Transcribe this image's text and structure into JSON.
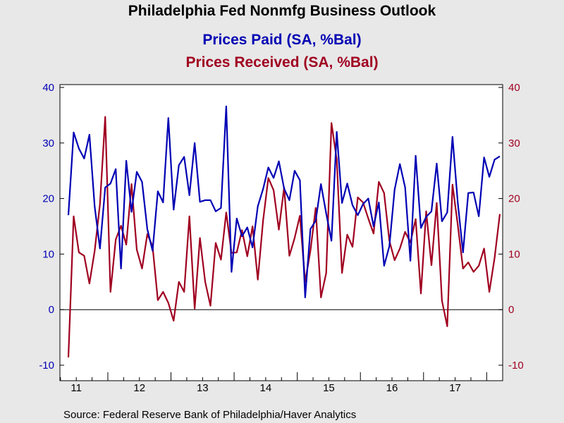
{
  "chart_data": {
    "type": "line",
    "title": "Philadelphia Fed Nonmfg Business Outlook",
    "source": "Source:  Federal Reserve Bank of Philadelphia/Haver Analytics",
    "x_tick_labels": [
      "11",
      "12",
      "13",
      "14",
      "15",
      "16",
      "17"
    ],
    "y_left": {
      "ticks": [
        "40",
        "30",
        "20",
        "10",
        "0",
        "-10"
      ],
      "range": [
        -10,
        40
      ],
      "color": "#0000b4"
    },
    "y_right": {
      "ticks": [
        "40",
        "30",
        "20",
        "10",
        "0",
        "-10"
      ],
      "range": [
        -10,
        40
      ],
      "color": "#a00020"
    },
    "grid": false,
    "zero_line": true,
    "x_start": "2011-05",
    "series": [
      {
        "name": "Prices Paid (SA, %Bal)",
        "color": "#0000b4",
        "values": [
          17.0,
          31.9,
          29.0,
          27.2,
          31.5,
          18.5,
          11.0,
          22.0,
          22.7,
          25.3,
          7.4,
          26.8,
          17.6,
          24.8,
          23.0,
          14.5,
          10.6,
          21.3,
          19.3,
          34.5,
          18.0,
          26.0,
          27.5,
          20.6,
          30.0,
          19.4,
          19.7,
          19.7,
          17.7,
          18.3,
          36.6,
          6.8,
          16.4,
          13.2,
          14.8,
          11.2,
          18.6,
          21.7,
          25.6,
          23.7,
          26.7,
          21.8,
          19.7,
          25.0,
          23.3,
          2.2,
          14.5,
          16.0,
          22.6,
          17.3,
          12.4,
          32.0,
          19.2,
          22.7,
          18.8,
          17.0,
          19.0,
          20.0,
          15.0,
          19.3,
          7.9,
          11.4,
          21.6,
          26.2,
          22.0,
          8.8,
          27.7,
          14.7,
          16.7,
          17.7,
          26.3,
          15.9,
          17.5,
          31.1,
          19.3,
          10.3,
          21.0,
          21.1,
          16.8,
          27.4,
          23.9,
          27.0,
          27.6
        ]
      },
      {
        "name": "Prices Received (SA, %Bal)",
        "color": "#a00020",
        "values": [
          -8.6,
          16.8,
          10.3,
          9.7,
          4.7,
          10.6,
          19.0,
          34.7,
          3.2,
          12.6,
          15.1,
          11.7,
          22.6,
          10.8,
          7.4,
          13.6,
          11.4,
          1.7,
          3.2,
          1.2,
          -2.0,
          5.0,
          3.2,
          16.8,
          0.2,
          12.9,
          5.0,
          0.7,
          12.0,
          9.0,
          17.5,
          10.2,
          10.3,
          14.3,
          9.6,
          15.0,
          5.4,
          16.0,
          23.7,
          21.5,
          14.4,
          22.0,
          9.7,
          12.9,
          16.9,
          5.0,
          10.6,
          18.3,
          2.2,
          6.6,
          33.6,
          27.0,
          6.6,
          13.5,
          11.3,
          20.2,
          19.3,
          16.4,
          13.7,
          23.0,
          21.0,
          12.4,
          8.9,
          11.0,
          14.0,
          12.1,
          16.3,
          2.9,
          17.7,
          8.0,
          19.2,
          1.6,
          -3.0,
          22.5,
          15.3,
          7.4,
          8.5,
          6.8,
          7.9,
          11.0,
          3.2,
          9.3,
          17.2
        ]
      }
    ]
  }
}
